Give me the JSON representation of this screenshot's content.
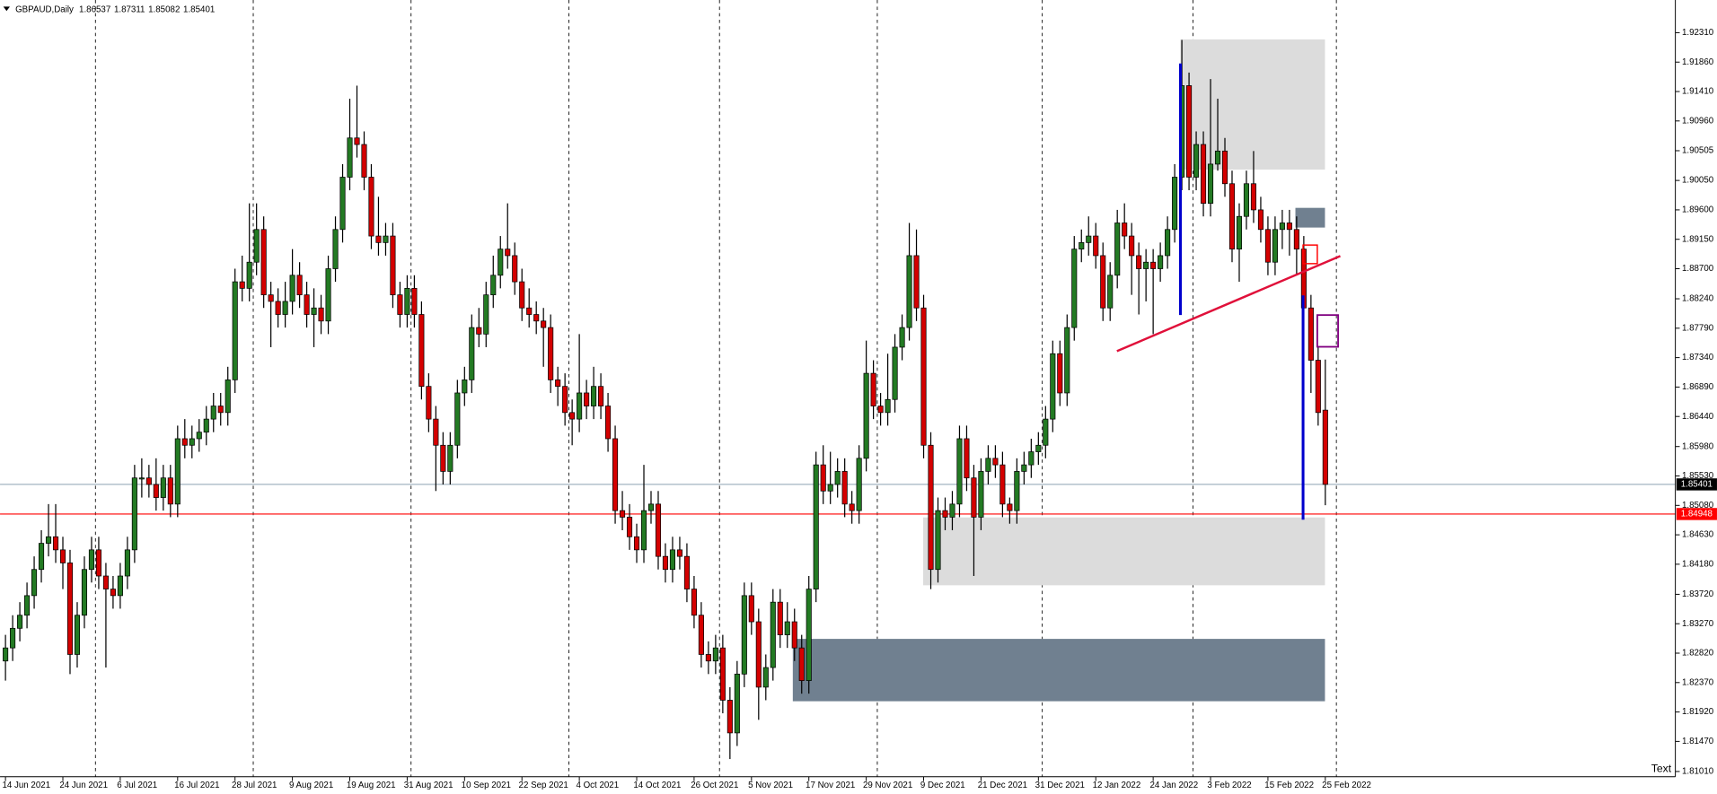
{
  "chart_data": {
    "type": "candlestick",
    "symbol": "GBPAUD,Daily",
    "annotation": "Text",
    "bull_color": "#237a23",
    "bear_color": "#d40000",
    "bid_line_color": "#a3b4c0",
    "grid": true,
    "xlim": [
      -0.76,
      232.8
    ],
    "ylim": [
      1.8093,
      1.9281
    ],
    "xgrid": [
      13,
      35,
      57,
      79,
      100,
      122,
      145,
      166,
      186
    ],
    "xticks": [
      {
        "value": 0,
        "label": "14 Jun 2021"
      },
      {
        "value": 8,
        "label": "24 Jun 2021"
      },
      {
        "value": 16,
        "label": "6 Jul 2021"
      },
      {
        "value": 24,
        "label": "16 Jul 2021"
      },
      {
        "value": 32,
        "label": "28 Jul 2021"
      },
      {
        "value": 40,
        "label": "9 Aug 2021"
      },
      {
        "value": 48,
        "label": "19 Aug 2021"
      },
      {
        "value": 56,
        "label": "31 Aug 2021"
      },
      {
        "value": 64,
        "label": "10 Sep 2021"
      },
      {
        "value": 72,
        "label": "22 Sep 2021"
      },
      {
        "value": 80,
        "label": "4 Oct 2021"
      },
      {
        "value": 88,
        "label": "14 Oct 2021"
      },
      {
        "value": 96,
        "label": "26 Oct 2021"
      },
      {
        "value": 104,
        "label": "5 Nov 2021"
      },
      {
        "value": 112,
        "label": "17 Nov 2021"
      },
      {
        "value": 120,
        "label": "29 Nov 2021"
      },
      {
        "value": 128,
        "label": "9 Dec 2021"
      },
      {
        "value": 136,
        "label": "21 Dec 2021"
      },
      {
        "value": 144,
        "label": "31 Dec 2021"
      },
      {
        "value": 152,
        "label": "12 Jan 2022"
      },
      {
        "value": 160,
        "label": "24 Jan 2022"
      },
      {
        "value": 168,
        "label": "3 Feb 2022"
      },
      {
        "value": 176,
        "label": "15 Feb 2022"
      },
      {
        "value": 184,
        "label": "25 Feb 2022"
      }
    ],
    "yticks": [
      {
        "value": 1.9231,
        "label": "1.92310"
      },
      {
        "value": 1.9186,
        "label": "1.91860"
      },
      {
        "value": 1.9141,
        "label": "1.91410"
      },
      {
        "value": 1.9096,
        "label": "1.90960"
      },
      1.90505,
      {
        "value": 1.9005,
        "label": "1.90050"
      },
      {
        "value": 1.896,
        "label": "1.89600"
      },
      {
        "value": 1.8915,
        "label": "1.89150"
      },
      {
        "value": 1.887,
        "label": "1.88700"
      },
      {
        "value": 1.8824,
        "label": "1.88240"
      },
      {
        "value": 1.8779,
        "label": "1.87790"
      },
      {
        "value": 1.8734,
        "label": "1.87340"
      },
      {
        "value": 1.8689,
        "label": "1.86890"
      },
      {
        "value": 1.8644,
        "label": "1.86440"
      },
      {
        "value": 1.8598,
        "label": "1.85980"
      },
      {
        "value": 1.8553,
        "label": "1.85530"
      },
      {
        "value": 1.8508,
        "label": "1.85080"
      },
      {
        "value": 1.8463,
        "label": "1.84630"
      },
      {
        "value": 1.8418,
        "label": "1.84180"
      },
      {
        "value": 1.8372,
        "label": "1.83720"
      },
      {
        "value": 1.8327,
        "label": "1.83270"
      },
      {
        "value": 1.8282,
        "label": "1.82820"
      },
      {
        "value": 1.8237,
        "label": "1.82370"
      },
      {
        "value": 1.8192,
        "label": "1.81920"
      },
      {
        "value": 1.8147,
        "label": "1.81470"
      },
      {
        "value": 1.8101,
        "label": "1.81010"
      }
    ],
    "hlines": [
      {
        "value": 1.84948,
        "color": "#ff0000"
      }
    ],
    "open": [
      1.827,
      1.829,
      1.832,
      1.834,
      1.837,
      1.841,
      1.845,
      1.846,
      1.844,
      1.842,
      1.828,
      1.834,
      1.841,
      1.844,
      1.84,
      1.838,
      1.837,
      1.84,
      1.844,
      1.855,
      1.855,
      1.854,
      1.852,
      1.855,
      1.851,
      1.861,
      1.86,
      1.861,
      1.862,
      1.864,
      1.866,
      1.865,
      1.87,
      1.885,
      1.884,
      1.888,
      1.893,
      1.883,
      1.882,
      1.88,
      1.882,
      1.886,
      1.883,
      1.88,
      1.881,
      1.879,
      1.887,
      1.893,
      1.901,
      1.907,
      1.906,
      1.901,
      1.892,
      1.891,
      1.892,
      1.883,
      1.88,
      1.884,
      1.88,
      1.869,
      1.864,
      1.86,
      1.856,
      1.86,
      1.868,
      1.87,
      1.878,
      1.877,
      1.883,
      1.886,
      1.89,
      1.889,
      1.885,
      1.881,
      1.88,
      1.879,
      1.878,
      1.87,
      1.869,
      1.865,
      1.864,
      1.868,
      1.866,
      1.869,
      1.866,
      1.861,
      1.85,
      1.849,
      1.846,
      1.844,
      1.85,
      1.851,
      1.843,
      1.841,
      1.844,
      1.843,
      1.838,
      1.834,
      1.828,
      1.827,
      1.829,
      1.821,
      1.816,
      1.825,
      1.837,
      1.833,
      1.823,
      1.826,
      1.836,
      1.831,
      1.833,
      1.829,
      1.824,
      1.838,
      1.857,
      1.853,
      1.854,
      1.856,
      1.851,
      1.85,
      1.858,
      1.871,
      1.866,
      1.865,
      1.867,
      1.875,
      1.878,
      1.889,
      1.881,
      1.86,
      1.841,
      1.85,
      1.849,
      1.851,
      1.861,
      1.855,
      1.849,
      1.856,
      1.858,
      1.857,
      1.851,
      1.85,
      1.856,
      1.857,
      1.859,
      1.86,
      1.864,
      1.874,
      1.868,
      1.878,
      1.89,
      1.891,
      1.892,
      1.889,
      1.881,
      1.886,
      1.894,
      1.892,
      1.889,
      1.887,
      1.888,
      1.887,
      1.889,
      1.893,
      1.901,
      1.915,
      1.901,
      1.906,
      1.897,
      1.903,
      1.905,
      1.9,
      1.89,
      1.895,
      1.9,
      1.896,
      1.893,
      1.888,
      1.893,
      1.894,
      1.893,
      1.89,
      1.881,
      1.873,
      1.86537
    ],
    "high": [
      1.831,
      1.834,
      1.836,
      1.839,
      1.843,
      1.847,
      1.851,
      1.851,
      1.846,
      1.844,
      1.836,
      1.843,
      1.846,
      1.846,
      1.842,
      1.84,
      1.842,
      1.846,
      1.857,
      1.858,
      1.857,
      1.858,
      1.857,
      1.857,
      1.863,
      1.864,
      1.863,
      1.864,
      1.866,
      1.868,
      1.868,
      1.872,
      1.887,
      1.889,
      1.897,
      1.897,
      1.895,
      1.885,
      1.884,
      1.885,
      1.89,
      1.888,
      1.885,
      1.884,
      1.883,
      1.889,
      1.895,
      1.903,
      1.913,
      1.915,
      1.908,
      1.903,
      1.898,
      1.894,
      1.894,
      1.885,
      1.886,
      1.886,
      1.882,
      1.871,
      1.866,
      1.862,
      1.862,
      1.87,
      1.872,
      1.88,
      1.881,
      1.885,
      1.889,
      1.892,
      1.897,
      1.891,
      1.887,
      1.884,
      1.882,
      1.881,
      1.88,
      1.872,
      1.871,
      1.867,
      1.877,
      1.87,
      1.872,
      1.871,
      1.868,
      1.863,
      1.853,
      1.851,
      1.848,
      1.857,
      1.853,
      1.853,
      1.845,
      1.846,
      1.846,
      1.845,
      1.84,
      1.836,
      1.83,
      1.831,
      1.831,
      1.823,
      1.827,
      1.839,
      1.839,
      1.835,
      1.828,
      1.838,
      1.838,
      1.836,
      1.835,
      1.831,
      1.84,
      1.859,
      1.86,
      1.859,
      1.858,
      1.858,
      1.853,
      1.86,
      1.876,
      1.873,
      1.868,
      1.874,
      1.877,
      1.88,
      1.894,
      1.893,
      1.883,
      1.862,
      1.852,
      1.852,
      1.853,
      1.863,
      1.863,
      1.857,
      1.858,
      1.86,
      1.86,
      1.859,
      1.852,
      1.858,
      1.859,
      1.861,
      1.862,
      1.866,
      1.876,
      1.876,
      1.88,
      1.892,
      1.893,
      1.895,
      1.894,
      1.891,
      1.888,
      1.896,
      1.897,
      1.894,
      1.891,
      1.89,
      1.89,
      1.891,
      1.895,
      1.903,
      1.922,
      1.917,
      1.908,
      1.908,
      1.916,
      1.913,
      1.907,
      1.902,
      1.897,
      1.902,
      1.905,
      1.898,
      1.895,
      1.895,
      1.896,
      1.896,
      1.895,
      1.892,
      1.883,
      1.875,
      1.87311
    ],
    "low": [
      1.824,
      1.827,
      1.83,
      1.832,
      1.835,
      1.839,
      1.843,
      1.842,
      1.838,
      1.825,
      1.826,
      1.832,
      1.839,
      1.838,
      1.826,
      1.835,
      1.835,
      1.838,
      1.842,
      1.852,
      1.852,
      1.85,
      1.85,
      1.849,
      1.849,
      1.858,
      1.858,
      1.859,
      1.86,
      1.862,
      1.863,
      1.863,
      1.868,
      1.882,
      1.882,
      1.886,
      1.881,
      1.875,
      1.878,
      1.878,
      1.88,
      1.881,
      1.878,
      1.875,
      1.877,
      1.877,
      1.885,
      1.891,
      1.899,
      1.904,
      1.899,
      1.89,
      1.889,
      1.889,
      1.881,
      1.878,
      1.878,
      1.878,
      1.867,
      1.862,
      1.853,
      1.854,
      1.854,
      1.858,
      1.866,
      1.868,
      1.875,
      1.875,
      1.881,
      1.884,
      1.887,
      1.883,
      1.879,
      1.878,
      1.877,
      1.872,
      1.868,
      1.866,
      1.863,
      1.86,
      1.862,
      1.864,
      1.864,
      1.864,
      1.859,
      1.848,
      1.847,
      1.844,
      1.842,
      1.842,
      1.848,
      1.841,
      1.839,
      1.839,
      1.841,
      1.836,
      1.832,
      1.826,
      1.825,
      1.825,
      1.819,
      1.812,
      1.814,
      1.823,
      1.831,
      1.818,
      1.821,
      1.824,
      1.829,
      1.829,
      1.827,
      1.822,
      1.822,
      1.836,
      1.851,
      1.851,
      1.852,
      1.849,
      1.848,
      1.848,
      1.856,
      1.864,
      1.863,
      1.863,
      1.865,
      1.873,
      1.876,
      1.879,
      1.858,
      1.838,
      1.839,
      1.847,
      1.847,
      1.849,
      1.853,
      1.84,
      1.847,
      1.854,
      1.855,
      1.849,
      1.848,
      1.848,
      1.854,
      1.855,
      1.857,
      1.858,
      1.862,
      1.866,
      1.866,
      1.876,
      1.888,
      1.889,
      1.887,
      1.879,
      1.879,
      1.884,
      1.89,
      1.883,
      1.88,
      1.882,
      1.877,
      1.885,
      1.887,
      1.891,
      1.899,
      1.899,
      1.899,
      1.895,
      1.895,
      1.902,
      1.898,
      1.888,
      1.885,
      1.893,
      1.894,
      1.891,
      1.886,
      1.886,
      1.89,
      1.889,
      1.886,
      1.877,
      1.868,
      1.863,
      1.85082
    ],
    "close": [
      1.829,
      1.832,
      1.834,
      1.837,
      1.841,
      1.845,
      1.846,
      1.844,
      1.842,
      1.828,
      1.834,
      1.841,
      1.844,
      1.84,
      1.838,
      1.837,
      1.84,
      1.844,
      1.855,
      1.855,
      1.854,
      1.852,
      1.855,
      1.851,
      1.861,
      1.86,
      1.861,
      1.862,
      1.864,
      1.866,
      1.865,
      1.87,
      1.885,
      1.884,
      1.888,
      1.893,
      1.883,
      1.882,
      1.88,
      1.882,
      1.886,
      1.883,
      1.88,
      1.881,
      1.879,
      1.887,
      1.893,
      1.901,
      1.907,
      1.906,
      1.901,
      1.892,
      1.891,
      1.892,
      1.883,
      1.88,
      1.884,
      1.88,
      1.869,
      1.864,
      1.86,
      1.856,
      1.86,
      1.868,
      1.87,
      1.878,
      1.877,
      1.883,
      1.886,
      1.89,
      1.889,
      1.885,
      1.881,
      1.88,
      1.879,
      1.878,
      1.87,
      1.869,
      1.865,
      1.864,
      1.868,
      1.866,
      1.869,
      1.866,
      1.861,
      1.85,
      1.849,
      1.846,
      1.844,
      1.85,
      1.851,
      1.843,
      1.841,
      1.844,
      1.843,
      1.838,
      1.834,
      1.828,
      1.827,
      1.829,
      1.821,
      1.816,
      1.825,
      1.837,
      1.833,
      1.823,
      1.826,
      1.836,
      1.831,
      1.833,
      1.829,
      1.824,
      1.838,
      1.857,
      1.853,
      1.854,
      1.856,
      1.851,
      1.85,
      1.858,
      1.871,
      1.866,
      1.865,
      1.867,
      1.875,
      1.878,
      1.889,
      1.881,
      1.86,
      1.841,
      1.85,
      1.849,
      1.851,
      1.861,
      1.855,
      1.849,
      1.856,
      1.858,
      1.857,
      1.851,
      1.85,
      1.856,
      1.857,
      1.859,
      1.86,
      1.864,
      1.874,
      1.868,
      1.878,
      1.89,
      1.891,
      1.892,
      1.889,
      1.881,
      1.886,
      1.894,
      1.892,
      1.889,
      1.887,
      1.888,
      1.887,
      1.889,
      1.893,
      1.901,
      1.915,
      1.901,
      1.906,
      1.897,
      1.903,
      1.905,
      1.9,
      1.89,
      1.895,
      1.9,
      1.896,
      1.893,
      1.888,
      1.893,
      1.894,
      1.893,
      1.89,
      1.881,
      1.873,
      1.865,
      1.85401
    ]
  }
}
